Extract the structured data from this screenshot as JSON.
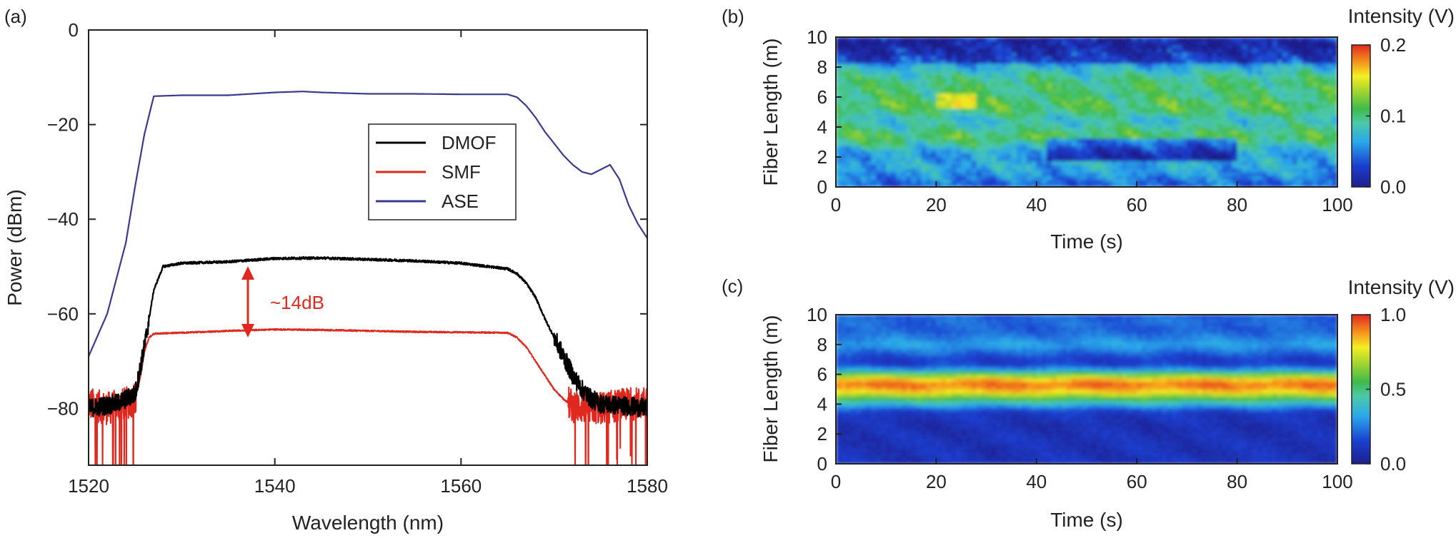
{
  "chart_data": [
    {
      "panel": "(a)",
      "type": "line",
      "xlabel": "Wavelength (nm)",
      "ylabel": "Power (dBm)",
      "xlim": [
        1520,
        1580
      ],
      "ylim": [
        -92,
        0
      ],
      "xticks": [
        1520,
        1540,
        1560,
        1580
      ],
      "yticks": [
        0,
        -20,
        -40,
        -60,
        -80
      ],
      "ytick_labels": [
        "0",
        "−20",
        "−40",
        "−60",
        "−80"
      ],
      "legend": [
        "DMOF",
        "SMF",
        "ASE"
      ],
      "annotation": "~14dB",
      "series": [
        {
          "name": "ASE",
          "color": "#3a3a8e",
          "x": [
            1520,
            1522,
            1524,
            1525,
            1526,
            1527,
            1530,
            1535,
            1540,
            1543,
            1545,
            1550,
            1555,
            1560,
            1565,
            1566,
            1567,
            1568,
            1569,
            1570,
            1571,
            1572,
            1573,
            1574,
            1575,
            1576,
            1577,
            1578,
            1579,
            1580
          ],
          "y": [
            -69,
            -60,
            -45,
            -33,
            -22,
            -14,
            -13.8,
            -13.8,
            -13.2,
            -13.0,
            -13.2,
            -13.5,
            -13.5,
            -13.6,
            -13.6,
            -14.2,
            -16,
            -18.5,
            -21.5,
            -24,
            -26.5,
            -28.5,
            -30,
            -30.5,
            -29.5,
            -28.5,
            -31.5,
            -37,
            -41,
            -44
          ]
        },
        {
          "name": "DMOF",
          "color": "#000000",
          "x": [
            1520,
            1523,
            1525,
            1526,
            1527,
            1528,
            1530,
            1535,
            1540,
            1545,
            1550,
            1555,
            1560,
            1565,
            1566,
            1567,
            1568,
            1569,
            1570,
            1571,
            1572,
            1573,
            1574,
            1575,
            1578,
            1580
          ],
          "y": [
            -80,
            -79,
            -77,
            -67,
            -55,
            -50,
            -49.3,
            -49,
            -48.3,
            -48.2,
            -48.5,
            -48.8,
            -49.3,
            -50.5,
            -51.5,
            -53.5,
            -56.5,
            -61,
            -65,
            -69,
            -73,
            -76,
            -78,
            -79,
            -79.5,
            -80
          ]
        },
        {
          "name": "SMF",
          "color": "#e0281e",
          "x": [
            1520,
            1522,
            1524,
            1525,
            1525.5,
            1526,
            1526.5,
            1527,
            1530,
            1535,
            1540,
            1545,
            1550,
            1555,
            1560,
            1565,
            1566,
            1567,
            1568,
            1569,
            1570,
            1571,
            1572,
            1575,
            1578,
            1580
          ],
          "y": [
            -79,
            -80,
            -79,
            -78,
            -74,
            -68,
            -65,
            -64.2,
            -64,
            -63.6,
            -63.3,
            -63.4,
            -63.6,
            -63.8,
            -63.9,
            -64,
            -65,
            -67,
            -70,
            -73,
            -76,
            -78,
            -79.5,
            -80,
            -79,
            -79
          ]
        }
      ]
    },
    {
      "panel": "(b)",
      "type": "heatmap",
      "xlabel": "Time (s)",
      "ylabel": "Fiber Length (m)",
      "xlim": [
        0,
        100
      ],
      "ylim": [
        0,
        10
      ],
      "xticks": [
        0,
        20,
        40,
        60,
        80,
        100
      ],
      "yticks": [
        0,
        2,
        4,
        6,
        8,
        10
      ],
      "colorbar_title": "Intensity (V)",
      "colorbar_range": [
        0.0,
        0.2
      ],
      "colorbar_ticks": [
        "0.0",
        "0.1",
        "0.2"
      ],
      "profile_length_m": [
        0,
        0.5,
        1,
        1.5,
        2,
        2.5,
        3,
        3.5,
        4,
        4.5,
        5,
        5.5,
        6,
        6.5,
        7,
        7.5,
        8,
        8.5,
        9,
        9.5,
        10
      ],
      "profile_intensity_V": [
        0.04,
        0.05,
        0.06,
        0.07,
        0.06,
        0.07,
        0.1,
        0.11,
        0.09,
        0.08,
        0.1,
        0.11,
        0.1,
        0.1,
        0.1,
        0.09,
        0.07,
        0.05,
        0.04,
        0.03,
        0.04
      ]
    },
    {
      "panel": "(c)",
      "type": "heatmap",
      "xlabel": "Time (s)",
      "ylabel": "Fiber Length (m)",
      "xlim": [
        0,
        100
      ],
      "ylim": [
        0,
        10
      ],
      "xticks": [
        0,
        20,
        40,
        60,
        80,
        100
      ],
      "yticks": [
        0,
        2,
        4,
        6,
        8,
        10
      ],
      "colorbar_title": "Intensity (V)",
      "colorbar_range": [
        0.0,
        1.0
      ],
      "colorbar_ticks": [
        "0.0",
        "0.5",
        "1.0"
      ],
      "profile_length_m": [
        0,
        0.5,
        1,
        1.5,
        2,
        2.5,
        3,
        3.5,
        4,
        4.5,
        5,
        5.5,
        6,
        6.5,
        7,
        7.5,
        8,
        8.5,
        9,
        9.5,
        10
      ],
      "profile_intensity_V": [
        0.1,
        0.1,
        0.09,
        0.1,
        0.09,
        0.08,
        0.1,
        0.12,
        0.35,
        0.62,
        0.88,
        0.92,
        0.6,
        0.18,
        0.12,
        0.22,
        0.32,
        0.25,
        0.2,
        0.22,
        0.2
      ]
    }
  ]
}
